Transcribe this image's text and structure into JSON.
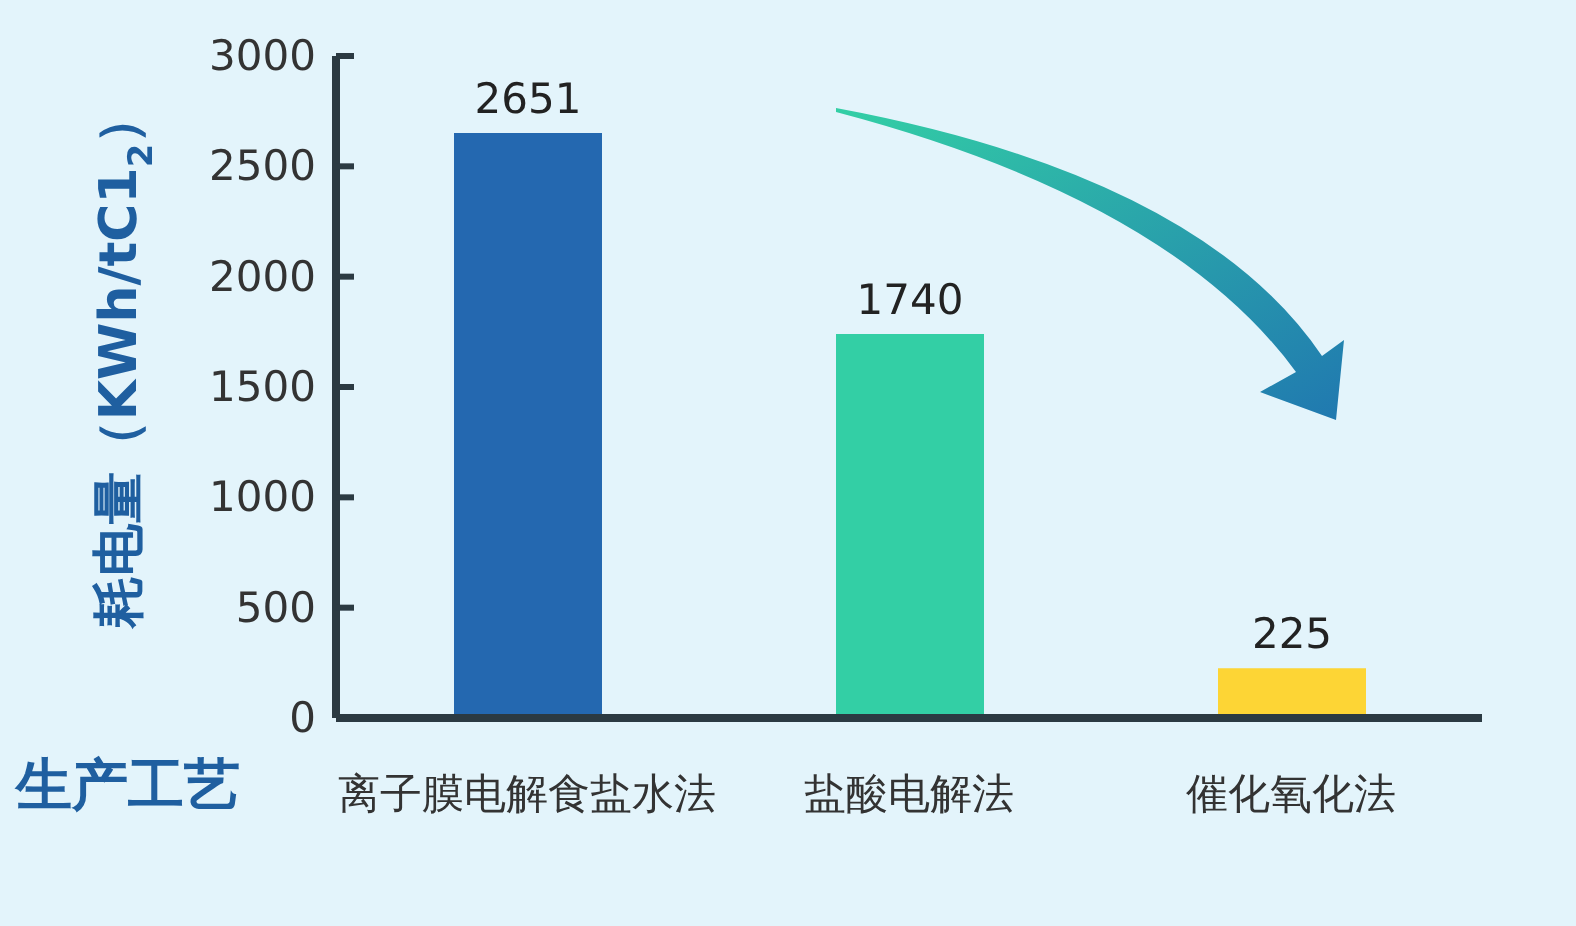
{
  "chart_data": {
    "type": "bar",
    "ylabel": "耗电量（KWh/tC1$_{2}$）",
    "xlabel": "生产工艺",
    "categories": [
      "离子膜电解食盐水法",
      "盐酸电解法",
      "催化氧化法"
    ],
    "values": [
      2651,
      1740,
      225
    ],
    "colors": [
      "#2468b0",
      "#33cfa5",
      "#fdd535"
    ],
    "ylim": [
      0,
      3000
    ],
    "yticks": [
      0,
      500,
      1000,
      1500,
      2000,
      2500,
      3000
    ],
    "data_labels": true
  }
}
